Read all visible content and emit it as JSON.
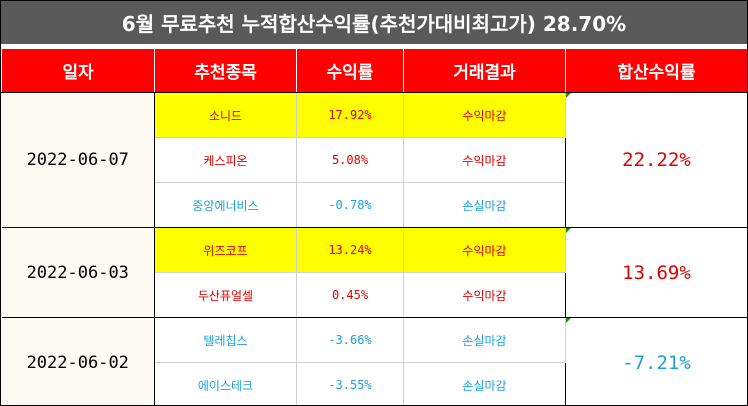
{
  "title": "6월 무료추천 누적합산수익률(추천가대비최고가) 28.70%",
  "headers": {
    "date": "일자",
    "stock": "추천종목",
    "return": "수익률",
    "result": "거래결과",
    "total": "합산수익률"
  },
  "colors": {
    "header_bg": "#ff0000",
    "title_bg": "#595959",
    "highlight": "#ffff00",
    "profit": "#e00000",
    "loss": "#1ba1e2"
  },
  "groups": [
    {
      "date": "2022-06-07",
      "total": "22.22%",
      "total_color": "red",
      "rows": [
        {
          "stock": "소니드",
          "return": "17.92%",
          "result": "수익마감",
          "color": "red",
          "highlight": true
        },
        {
          "stock": "케스피온",
          "return": "5.08%",
          "result": "수익마감",
          "color": "red",
          "highlight": false
        },
        {
          "stock": "중앙에너비스",
          "return": "-0.78%",
          "result": "손실마감",
          "color": "blue",
          "highlight": false
        }
      ]
    },
    {
      "date": "2022-06-03",
      "total": "13.69%",
      "total_color": "red",
      "rows": [
        {
          "stock": "위즈코프",
          "return": "13.24%",
          "result": "수익마감",
          "color": "red",
          "highlight": true
        },
        {
          "stock": "두산퓨얼셀",
          "return": "0.45%",
          "result": "수익마감",
          "color": "red",
          "highlight": false
        }
      ]
    },
    {
      "date": "2022-06-02",
      "total": "-7.21%",
      "total_color": "blue",
      "rows": [
        {
          "stock": "텔레칩스",
          "return": "-3.66%",
          "result": "손실마감",
          "color": "blue",
          "highlight": false
        },
        {
          "stock": "에이스테크",
          "return": "-3.55%",
          "result": "손실마감",
          "color": "blue",
          "highlight": false
        }
      ]
    }
  ]
}
